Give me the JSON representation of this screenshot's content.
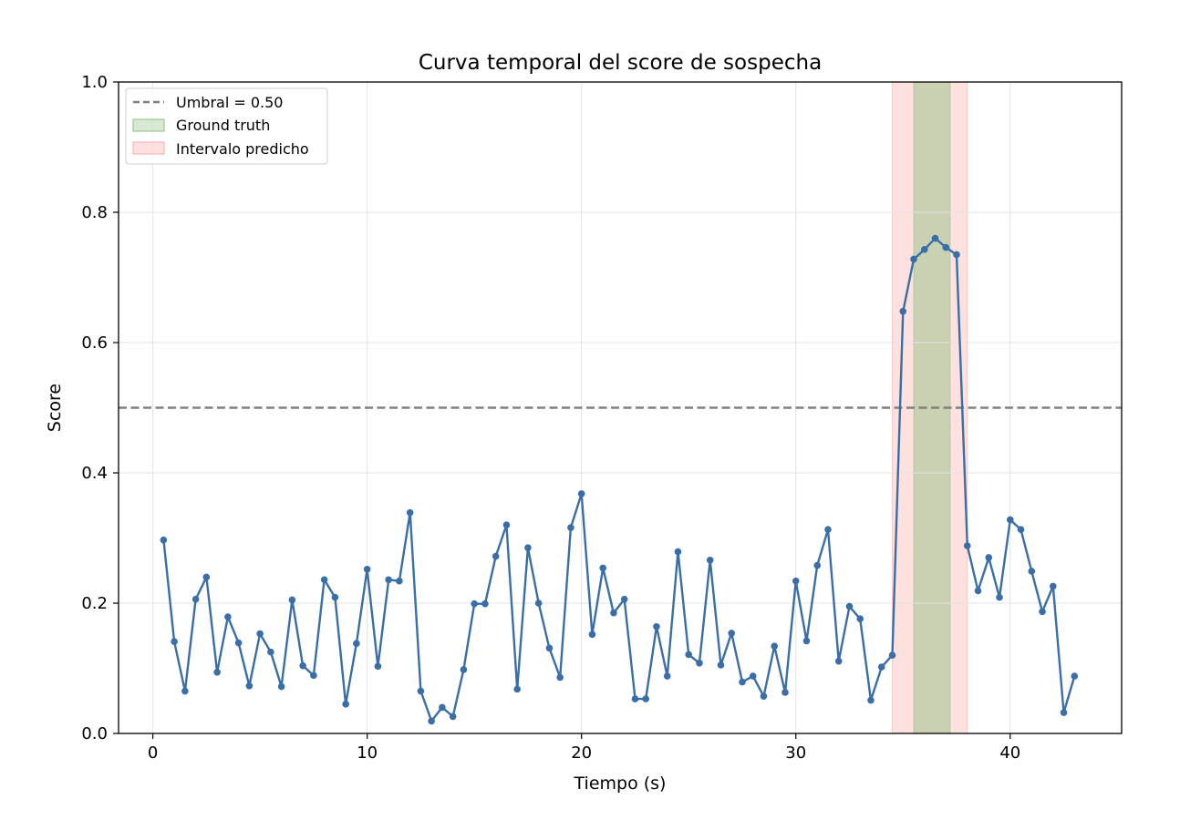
{
  "chart_data": {
    "type": "line",
    "title": "Curva temporal del score de sospecha",
    "xlabel": "Tiempo (s)",
    "ylabel": "Score",
    "xlim": [
      -1.6,
      45.2
    ],
    "ylim": [
      0,
      1
    ],
    "xticks": [
      0,
      10,
      20,
      30,
      40
    ],
    "yticks": [
      0.0,
      0.2,
      0.4,
      0.6,
      0.8,
      1.0
    ],
    "xtick_labels": [
      "0",
      "10",
      "20",
      "30",
      "40"
    ],
    "ytick_labels": [
      "0.0",
      "0.2",
      "0.4",
      "0.6",
      "0.8",
      "1.0"
    ],
    "grid": true,
    "legend_position": "top-left",
    "threshold": {
      "label": "Umbral = 0.50",
      "value": 0.5,
      "color": "#808080"
    },
    "ground_truth": {
      "label": "Ground truth",
      "start": 35.5,
      "end": 37.2,
      "color": "#8cbf7e"
    },
    "predicted_interval": {
      "label": "Intervalo predicho",
      "start": 34.5,
      "end": 38.0,
      "color": "#f8a9a4"
    },
    "series": [
      {
        "color": "#3a6ea8",
        "x": [
          0.5,
          1.0,
          1.5,
          2.0,
          2.5,
          3.0,
          3.5,
          4.0,
          4.5,
          5.0,
          5.5,
          6.0,
          6.5,
          7.0,
          7.5,
          8.0,
          8.5,
          9.0,
          9.5,
          10.0,
          10.5,
          11.0,
          11.5,
          12.0,
          12.5,
          13.0,
          13.5,
          14.0,
          14.5,
          15.0,
          15.5,
          16.0,
          16.5,
          17.0,
          17.5,
          18.0,
          18.5,
          19.0,
          19.5,
          20.0,
          20.5,
          21.0,
          21.5,
          22.0,
          22.5,
          23.0,
          23.5,
          24.0,
          24.5,
          25.0,
          25.5,
          26.0,
          26.5,
          27.0,
          27.5,
          28.0,
          28.5,
          29.0,
          29.5,
          30.0,
          30.5,
          31.0,
          31.5,
          32.0,
          32.5,
          33.0,
          33.5,
          34.0,
          34.5,
          35.0,
          35.5,
          36.0,
          36.5,
          37.0,
          37.5,
          38.0,
          38.5,
          39.0,
          39.5,
          40.0,
          40.5,
          41.0,
          41.5,
          42.0,
          42.5,
          43.0
        ],
        "y": [
          0.297,
          0.141,
          0.065,
          0.206,
          0.24,
          0.094,
          0.179,
          0.139,
          0.073,
          0.153,
          0.125,
          0.072,
          0.205,
          0.104,
          0.089,
          0.236,
          0.209,
          0.045,
          0.138,
          0.252,
          0.103,
          0.236,
          0.234,
          0.339,
          0.065,
          0.019,
          0.04,
          0.026,
          0.098,
          0.199,
          0.199,
          0.272,
          0.32,
          0.068,
          0.285,
          0.2,
          0.131,
          0.086,
          0.316,
          0.368,
          0.152,
          0.254,
          0.185,
          0.206,
          0.053,
          0.053,
          0.164,
          0.088,
          0.279,
          0.121,
          0.108,
          0.266,
          0.105,
          0.154,
          0.079,
          0.088,
          0.057,
          0.134,
          0.063,
          0.234,
          0.142,
          0.258,
          0.313,
          0.111,
          0.195,
          0.176,
          0.051,
          0.102,
          0.12,
          0.648,
          0.728,
          0.743,
          0.76,
          0.746,
          0.735,
          0.288,
          0.219,
          0.27,
          0.209,
          0.328,
          0.313,
          0.249,
          0.187,
          0.226,
          0.032,
          0.088
        ]
      }
    ]
  }
}
